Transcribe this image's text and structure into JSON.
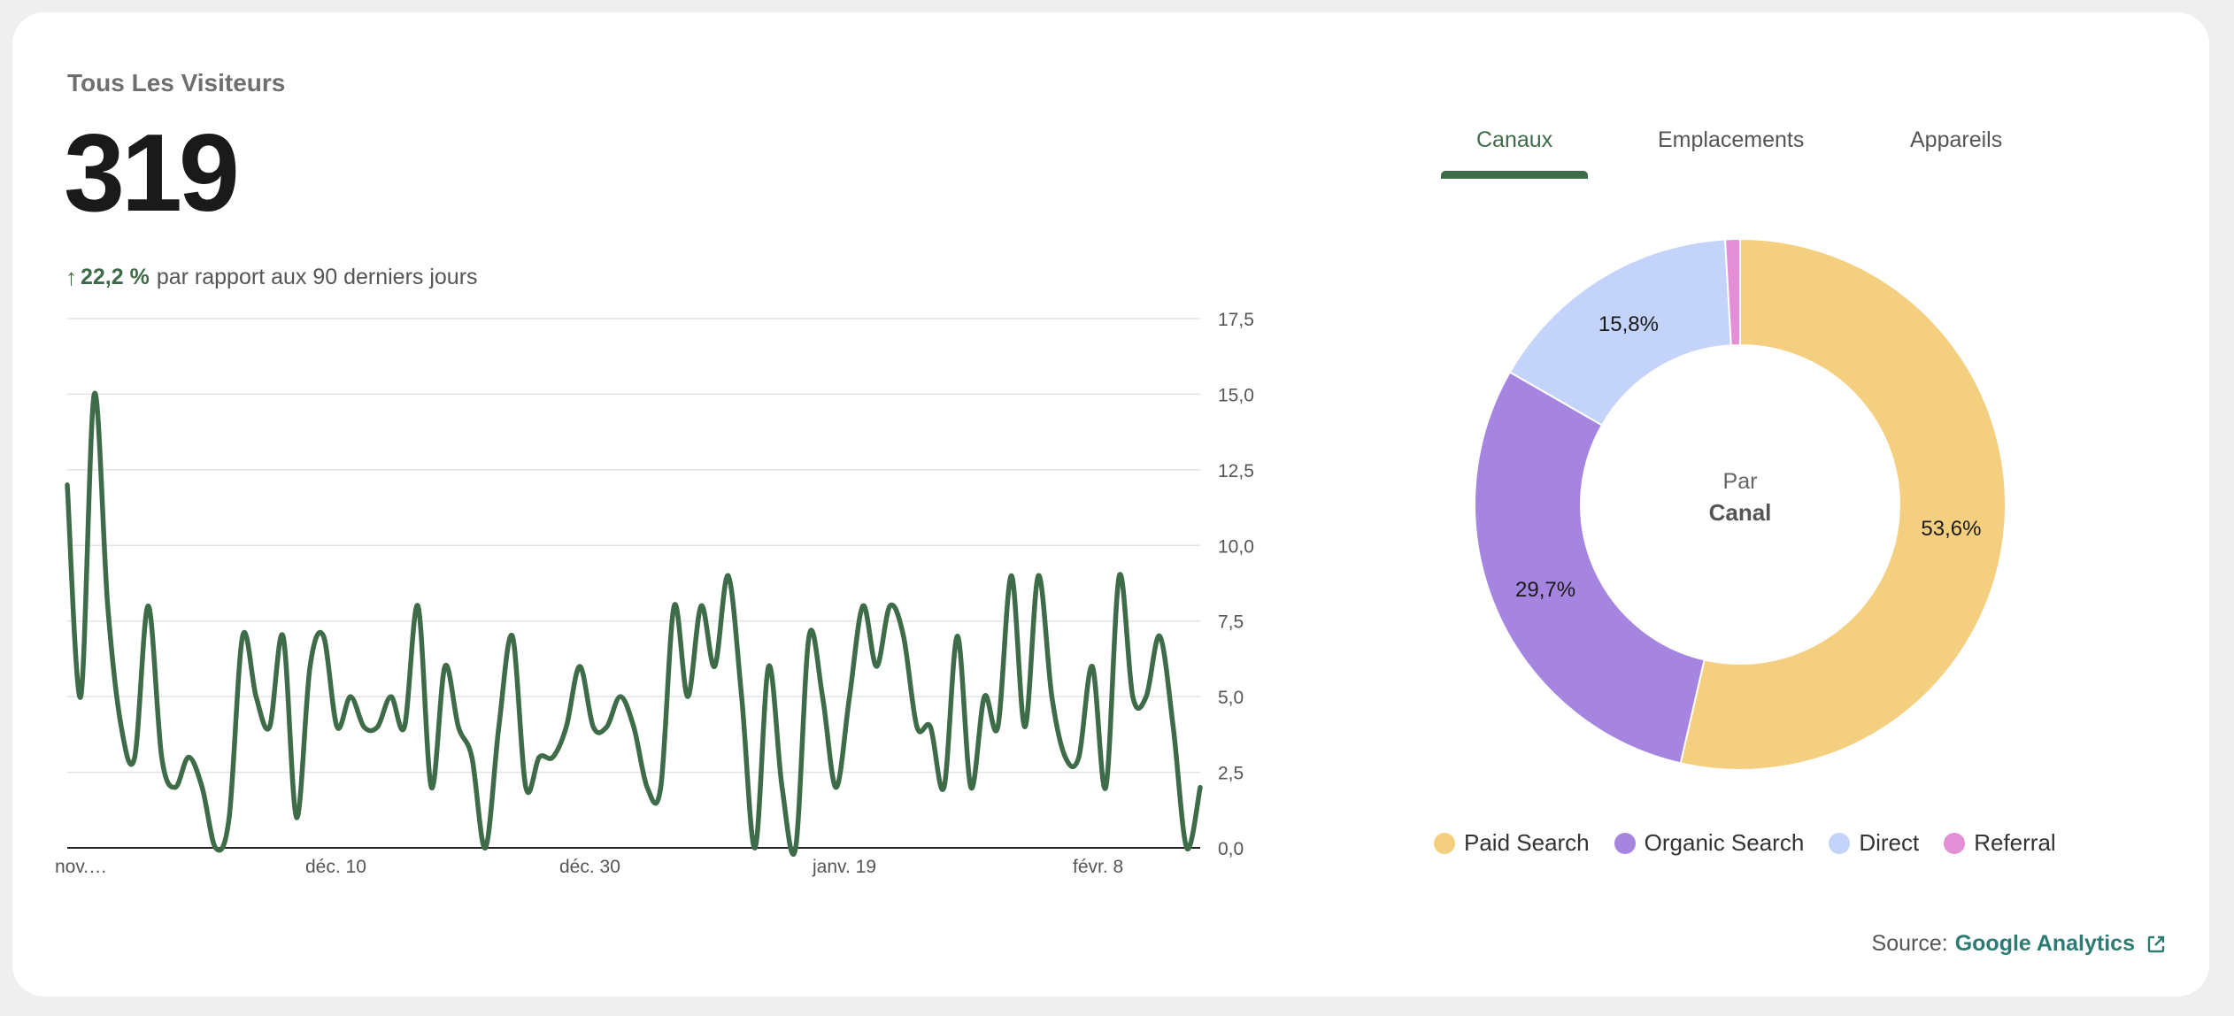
{
  "card": {
    "title": "Tous Les Visiteurs",
    "total": "319",
    "change_value": "22,2 %",
    "change_text": "par rapport aux 90 derniers jours"
  },
  "tabs": [
    {
      "label": "Canaux",
      "active": true
    },
    {
      "label": "Emplacements",
      "active": false
    },
    {
      "label": "Appareils",
      "active": false
    }
  ],
  "donut": {
    "center_top": "Par",
    "center_bottom": "Canal"
  },
  "legend": [
    {
      "label": "Paid Search",
      "color": "#f5cf80"
    },
    {
      "label": "Organic Search",
      "color": "#a585e0"
    },
    {
      "label": "Direct",
      "color": "#c3d3fa"
    },
    {
      "label": "Referral",
      "color": "#e28fd6"
    }
  ],
  "source": {
    "label": "Source:",
    "link": "Google Analytics"
  },
  "chart_data": [
    {
      "type": "line",
      "title": "Tous Les Visiteurs",
      "color": "#3e6b48",
      "x_tick_labels": [
        "nov.…",
        "déc. 10",
        "déc. 30",
        "janv. 19",
        "févr. 8"
      ],
      "y_tick_labels": [
        "0,0",
        "2,5",
        "5,0",
        "7,5",
        "10,0",
        "12,5",
        "15,0",
        "17,5"
      ],
      "ylim": [
        0,
        17.5
      ],
      "values": [
        12,
        5,
        15,
        8,
        4,
        3,
        8,
        3,
        2,
        3,
        2,
        0,
        1,
        7,
        5,
        4,
        7,
        1,
        6,
        7,
        4,
        5,
        4,
        4,
        5,
        4,
        8,
        2,
        6,
        4,
        3,
        0,
        4,
        7,
        2,
        3,
        3,
        4,
        6,
        4,
        4,
        5,
        4,
        2,
        2,
        8,
        5,
        8,
        6,
        9,
        5,
        0,
        6,
        2,
        0,
        7,
        5,
        2,
        5,
        8,
        6,
        8,
        7,
        4,
        4,
        2,
        7,
        2,
        5,
        4,
        9,
        4,
        9,
        5,
        3,
        3,
        6,
        2,
        9,
        5,
        5,
        7,
        4,
        0,
        2
      ]
    },
    {
      "type": "pie",
      "title": "Par Canal",
      "slices": [
        {
          "label": "Paid Search",
          "value": 53.6,
          "display": "53,6%",
          "color": "#f5cf80"
        },
        {
          "label": "Organic Search",
          "value": 29.7,
          "display": "29,7%",
          "color": "#a585e0"
        },
        {
          "label": "Direct",
          "value": 15.8,
          "display": "15,8%",
          "color": "#c3d3fa"
        },
        {
          "label": "Referral",
          "value": 0.9,
          "display": "",
          "color": "#e28fd6"
        }
      ]
    }
  ]
}
